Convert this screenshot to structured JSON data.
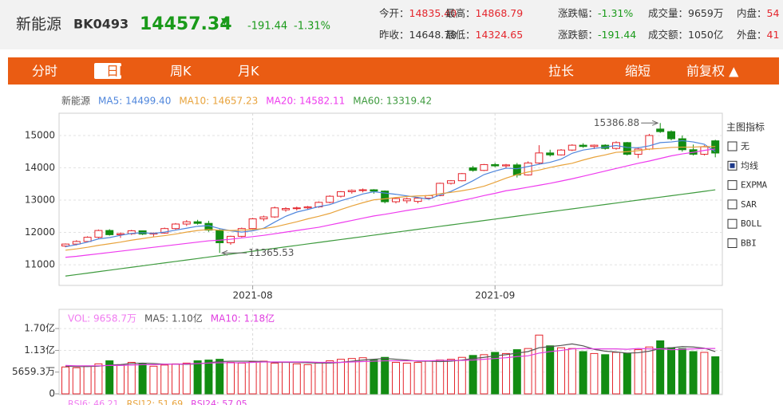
{
  "header": {
    "name": "新能源",
    "code": "BK0493",
    "price": "14457.34",
    "arrow": "▼",
    "change": "-191.44",
    "change_pct": "-1.31%",
    "stats": [
      {
        "label": "今开：",
        "value": "14835.40",
        "color": "#e4262d"
      },
      {
        "label": "最高：",
        "value": "14868.79",
        "color": "#e4262d"
      },
      {
        "label": "涨跌幅：",
        "value": "-1.31%",
        "color": "#1a9a1a"
      },
      {
        "label": "成交量：",
        "value": "9659万",
        "color": "#333333"
      },
      {
        "label": "内盘：",
        "value": "54",
        "color": "#e4262d"
      },
      {
        "label": "昨收：",
        "value": "14648.78",
        "color": "#333333"
      },
      {
        "label": "最低：",
        "value": "14324.65",
        "color": "#e4262d"
      },
      {
        "label": "涨跌额：",
        "value": "-191.44",
        "color": "#1a9a1a"
      },
      {
        "label": "成交额：",
        "value": "1050亿",
        "color": "#333333"
      },
      {
        "label": "外盘：",
        "value": "41",
        "color": "#e4262d"
      }
    ]
  },
  "tabs": {
    "left": [
      "分时",
      "日K",
      "周K",
      "月K"
    ],
    "selected": 1,
    "right": [
      "拉长",
      "缩短",
      "前复权 ▲"
    ]
  },
  "indicator_panel": {
    "title": "主图指标",
    "options": [
      {
        "label": "无",
        "checked": false
      },
      {
        "label": "均线",
        "checked": true
      },
      {
        "label": "EXPMA",
        "checked": false
      },
      {
        "label": "SAR",
        "checked": false
      },
      {
        "label": "BOLL",
        "checked": false
      },
      {
        "label": "BBI",
        "checked": false
      }
    ]
  },
  "rsi_legend": [
    {
      "text": "RSI6: 46.21",
      "color": "#f07cf0"
    },
    {
      "text": "RSI12: 51.69",
      "color": "#e8a33c"
    },
    {
      "text": "RSI24: 57.05",
      "color": "#e03fe0"
    }
  ],
  "chart_data": [
    {
      "type": "candlestick",
      "legend_title": "新能源",
      "categories": [
        null,
        null,
        null,
        null,
        null,
        null,
        null,
        null,
        null,
        null,
        null,
        null,
        null,
        null,
        null,
        null,
        null,
        "2021-08",
        null,
        null,
        null,
        null,
        null,
        null,
        null,
        null,
        null,
        null,
        null,
        null,
        null,
        null,
        null,
        null,
        null,
        null,
        null,
        null,
        null,
        "2021-09",
        null,
        null,
        null,
        null,
        null,
        null,
        null,
        null,
        null,
        null,
        null,
        null,
        null,
        null,
        null,
        null,
        null,
        null,
        null,
        null
      ],
      "open": [
        11580,
        11640,
        11720,
        11850,
        12060,
        11930,
        11960,
        12050,
        11950,
        11980,
        12120,
        12260,
        12330,
        12280,
        12070,
        11680,
        11880,
        12120,
        12420,
        12480,
        12700,
        12740,
        12760,
        12790,
        12930,
        13120,
        13260,
        13300,
        13320,
        13280,
        12950,
        12980,
        12960,
        13060,
        13140,
        13520,
        13600,
        14000,
        13920,
        14100,
        14060,
        14090,
        13780,
        14150,
        14460,
        14400,
        14550,
        14700,
        14660,
        14700,
        14600,
        14780,
        14420,
        14580,
        15200,
        15120,
        14900,
        14560,
        14420,
        14835.4
      ],
      "high": [
        11660,
        11760,
        11880,
        12090,
        12100,
        12000,
        12080,
        12060,
        12000,
        12150,
        12290,
        12380,
        12390,
        12360,
        12100,
        11900,
        12150,
        12450,
        12520,
        12800,
        12780,
        12800,
        12820,
        12960,
        13150,
        13280,
        13330,
        13360,
        13340,
        13300,
        13080,
        13080,
        13100,
        13160,
        13540,
        13620,
        13840,
        14060,
        14120,
        14150,
        14120,
        14150,
        14200,
        14700,
        14560,
        14580,
        14730,
        14760,
        14720,
        14730,
        14820,
        14800,
        14640,
        15050,
        15386.88,
        15160,
        15000,
        14720,
        14700,
        14868.79
      ],
      "low": [
        11540,
        11600,
        11690,
        11820,
        11900,
        11830,
        11920,
        11920,
        11870,
        11960,
        12080,
        12200,
        12240,
        12020,
        11365.53,
        11620,
        11850,
        12100,
        12350,
        12450,
        12640,
        12680,
        12700,
        12760,
        12900,
        13080,
        13200,
        13240,
        13200,
        12900,
        12900,
        12900,
        12900,
        13020,
        13120,
        13480,
        13580,
        13880,
        13900,
        14020,
        13980,
        13700,
        13760,
        14100,
        14350,
        14380,
        14520,
        14620,
        14580,
        14560,
        14560,
        14380,
        14300,
        14550,
        15080,
        14850,
        14500,
        14380,
        14380,
        14324.65
      ],
      "close": [
        11640,
        11720,
        11850,
        12060,
        11930,
        11960,
        12050,
        11950,
        11980,
        12120,
        12260,
        12330,
        12280,
        12070,
        11680,
        11880,
        12120,
        12420,
        12480,
        12760,
        12740,
        12760,
        12790,
        12930,
        13120,
        13260,
        13300,
        13320,
        13280,
        12950,
        13050,
        13040,
        13060,
        13140,
        13520,
        13600,
        13820,
        13920,
        14100,
        14060,
        14090,
        13780,
        14150,
        14460,
        14400,
        14550,
        14700,
        14660,
        14700,
        14600,
        14780,
        14420,
        14580,
        15000,
        15120,
        14900,
        14560,
        14420,
        14648.78,
        14457.34
      ],
      "up_color": "#e4262d",
      "down_color": "#128c12",
      "series": [
        {
          "name": "MA5: 14499.40",
          "color": "#4f86dc",
          "values": [
            11560,
            11620,
            11700,
            11800,
            11840,
            11910,
            11970,
            11990,
            11970,
            12010,
            12070,
            12130,
            12190,
            12210,
            12120,
            12050,
            12010,
            12050,
            12130,
            12320,
            12500,
            12630,
            12710,
            12800,
            12860,
            12980,
            13080,
            13190,
            13260,
            13220,
            13180,
            13130,
            13080,
            13030,
            13160,
            13270,
            13430,
            13600,
            13790,
            13900,
            13990,
            13970,
            14040,
            14110,
            14170,
            14270,
            14450,
            14550,
            14600,
            14640,
            14690,
            14630,
            14620,
            14680,
            14780,
            14800,
            14840,
            14800,
            14730,
            14499.4
          ]
        },
        {
          "name": "MA10: 14657.23",
          "color": "#e8a33c",
          "values": [
            11450,
            11490,
            11540,
            11600,
            11650,
            11700,
            11760,
            11810,
            11860,
            11900,
            11950,
            12010,
            12060,
            12090,
            12070,
            12060,
            12070,
            12090,
            12120,
            12170,
            12250,
            12330,
            12420,
            12500,
            12590,
            12710,
            12820,
            12920,
            13010,
            13040,
            13080,
            13110,
            13130,
            13140,
            13200,
            13240,
            13290,
            13350,
            13430,
            13550,
            13680,
            13790,
            13870,
            13930,
            14010,
            14080,
            14140,
            14240,
            14330,
            14400,
            14480,
            14500,
            14530,
            14580,
            14600,
            14630,
            14640,
            14640,
            14660,
            14657.23
          ]
        },
        {
          "name": "MA20: 14582.11",
          "color": "#ee3bee",
          "values": [
            11230,
            11260,
            11300,
            11340,
            11380,
            11420,
            11460,
            11500,
            11540,
            11580,
            11620,
            11660,
            11700,
            11740,
            11760,
            11790,
            11830,
            11870,
            11910,
            11960,
            12010,
            12060,
            12110,
            12160,
            12230,
            12300,
            12370,
            12440,
            12510,
            12560,
            12620,
            12680,
            12730,
            12780,
            12850,
            12920,
            12990,
            13060,
            13140,
            13210,
            13290,
            13340,
            13400,
            13460,
            13520,
            13590,
            13660,
            13740,
            13820,
            13900,
            13980,
            14060,
            14140,
            14210,
            14290,
            14370,
            14430,
            14480,
            14540,
            14582.11
          ]
        },
        {
          "name": "MA60: 13319.42",
          "color": "#3d9a3d",
          "values": [
            10650,
            10695,
            10740,
            10786,
            10831,
            10876,
            10921,
            10966,
            11012,
            11057,
            11102,
            11147,
            11192,
            11238,
            11283,
            11328,
            11373,
            11418,
            11464,
            11509,
            11554,
            11599,
            11644,
            11690,
            11735,
            11780,
            11825,
            11870,
            11916,
            11961,
            12006,
            12051,
            12096,
            12142,
            12187,
            12232,
            12277,
            12322,
            12368,
            12413,
            12458,
            12503,
            12548,
            12594,
            12639,
            12684,
            12729,
            12774,
            12820,
            12865,
            12910,
            12955,
            13000,
            13046,
            13091,
            13136,
            13181,
            13226,
            13272,
            13319.42
          ]
        }
      ],
      "annotations": [
        {
          "text": "15386.88",
          "value": 15386.88,
          "x": 54,
          "side": "left"
        },
        {
          "text": "11365.53",
          "value": 11365.53,
          "x": 14,
          "side": "right"
        }
      ],
      "ylim": [
        10360,
        15690
      ],
      "yticks": [
        11000,
        12000,
        13000,
        14000,
        15000
      ],
      "grid": true
    },
    {
      "type": "bar",
      "legend_title": "VOL: 9658.7万",
      "legend_color": "#f07cf0",
      "values": [
        0.7,
        0.68,
        0.72,
        0.78,
        0.86,
        0.76,
        0.82,
        0.78,
        0.72,
        0.75,
        0.78,
        0.8,
        0.86,
        0.88,
        0.9,
        0.82,
        0.8,
        0.84,
        0.85,
        0.8,
        0.82,
        0.78,
        0.76,
        0.8,
        0.86,
        0.9,
        0.92,
        0.94,
        0.88,
        0.95,
        0.82,
        0.8,
        0.82,
        0.86,
        0.88,
        0.9,
        0.95,
        1.0,
        1.02,
        1.08,
        1.05,
        1.15,
        1.18,
        1.53,
        1.25,
        1.2,
        1.18,
        1.1,
        1.05,
        1.02,
        1.08,
        1.06,
        1.15,
        1.22,
        1.38,
        1.2,
        1.18,
        1.1,
        1.08,
        0.96587
      ],
      "series": [
        {
          "name": "MA5: 1.10亿",
          "color": "#555555",
          "values": [
            0.72,
            0.71,
            0.71,
            0.72,
            0.75,
            0.76,
            0.79,
            0.8,
            0.79,
            0.77,
            0.77,
            0.77,
            0.78,
            0.81,
            0.84,
            0.85,
            0.85,
            0.85,
            0.84,
            0.82,
            0.82,
            0.82,
            0.81,
            0.8,
            0.8,
            0.82,
            0.85,
            0.88,
            0.9,
            0.92,
            0.9,
            0.88,
            0.85,
            0.85,
            0.84,
            0.85,
            0.88,
            0.92,
            0.95,
            0.99,
            1.02,
            1.06,
            1.1,
            1.2,
            1.23,
            1.26,
            1.3,
            1.25,
            1.16,
            1.11,
            1.09,
            1.06,
            1.07,
            1.11,
            1.18,
            1.2,
            1.23,
            1.22,
            1.19,
            1.1
          ]
        },
        {
          "name": "MA10: 1.18亿",
          "color": "#e03fe0",
          "values": [
            0.74,
            0.73,
            0.73,
            0.73,
            0.74,
            0.74,
            0.75,
            0.76,
            0.76,
            0.77,
            0.77,
            0.78,
            0.79,
            0.8,
            0.81,
            0.81,
            0.81,
            0.82,
            0.83,
            0.83,
            0.83,
            0.83,
            0.83,
            0.82,
            0.82,
            0.82,
            0.83,
            0.84,
            0.85,
            0.86,
            0.86,
            0.86,
            0.86,
            0.86,
            0.87,
            0.87,
            0.87,
            0.88,
            0.9,
            0.92,
            0.94,
            0.97,
            0.99,
            1.06,
            1.1,
            1.13,
            1.17,
            1.18,
            1.17,
            1.17,
            1.17,
            1.16,
            1.18,
            1.17,
            1.17,
            1.15,
            1.16,
            1.17,
            1.18,
            1.18
          ]
        }
      ],
      "ylim": [
        0,
        2.2
      ],
      "yticks": [
        0,
        {
          "value": 0.56593,
          "label": "5659.3万"
        },
        {
          "value": 1.13,
          "label": "1.13亿"
        },
        {
          "value": 1.7,
          "label": "1.70亿"
        }
      ],
      "grid": true
    }
  ]
}
